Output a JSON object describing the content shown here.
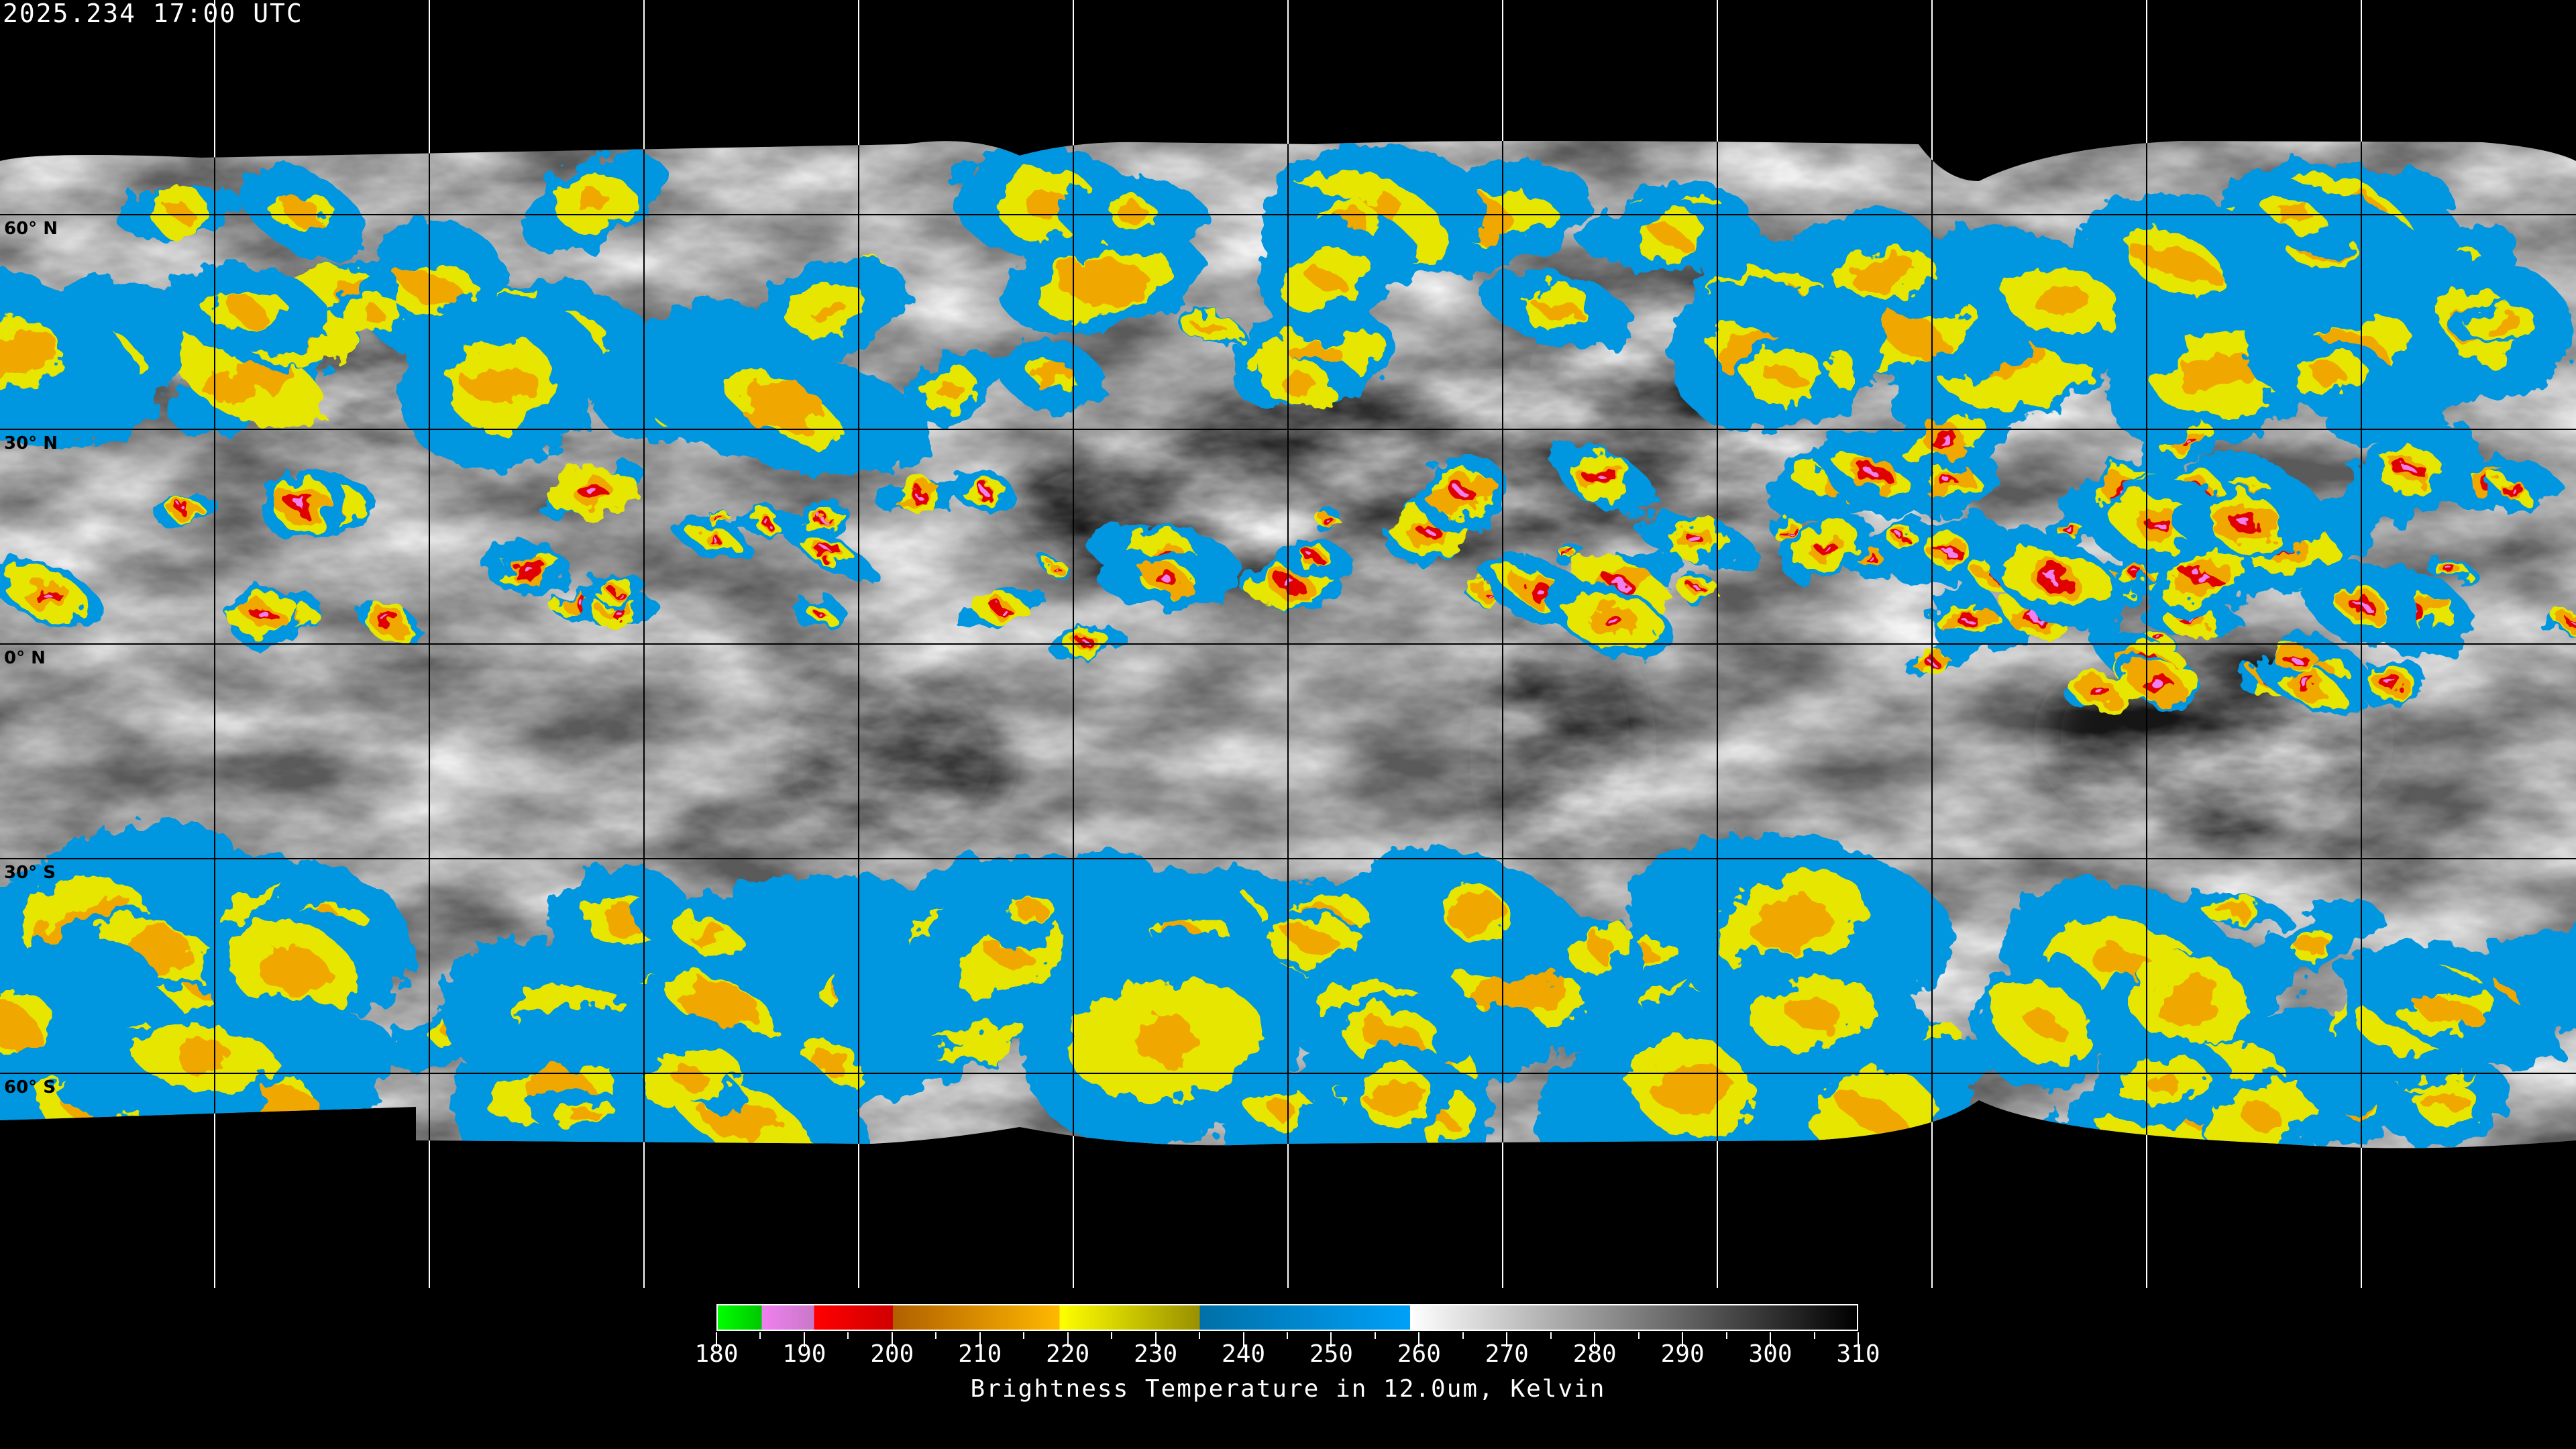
{
  "header": {
    "timestamp": "2025.234 17:00 UTC"
  },
  "map": {
    "projection": "equirectangular",
    "latitude_labels": [
      {
        "lat": 60,
        "text": "60° N"
      },
      {
        "lat": 30,
        "text": "30° N"
      },
      {
        "lat": 0,
        "text": "0° N"
      },
      {
        "lat": -30,
        "text": "30° S"
      },
      {
        "lat": -60,
        "text": "60° S"
      }
    ],
    "grid_spacing_deg": 30,
    "gridline_colors": {
      "over_image": "#000000",
      "over_background": "#ffffff"
    },
    "no_data_color": "#000000"
  },
  "colorbar": {
    "min": 180,
    "max": 310,
    "ticks": [
      "180",
      "190",
      "200",
      "210",
      "220",
      "230",
      "240",
      "250",
      "260",
      "270",
      "280",
      "290",
      "300",
      "310"
    ],
    "minor_tick_step": 5,
    "title": "Brightness Temperature in 12.0um, Kelvin",
    "segments": [
      {
        "from": 180,
        "to": 185,
        "start": "#00ff00",
        "end": "#00c800"
      },
      {
        "from": 185,
        "to": 191,
        "start": "#f080f0",
        "end": "#c878c8"
      },
      {
        "from": 191,
        "to": 200,
        "start": "#ff0000",
        "end": "#d00000"
      },
      {
        "from": 200,
        "to": 219,
        "start": "#b06000",
        "end": "#ffb800"
      },
      {
        "from": 219,
        "to": 235,
        "start": "#ffff00",
        "end": "#989000"
      },
      {
        "from": 235,
        "to": 259,
        "start": "#0070a8",
        "end": "#00a0f8"
      },
      {
        "from": 259,
        "to": 310,
        "start": "#ffffff",
        "end": "#000000"
      }
    ]
  }
}
